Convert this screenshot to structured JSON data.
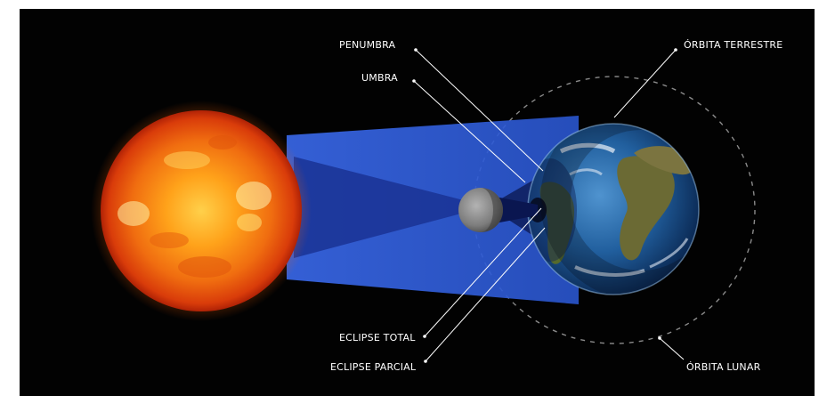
{
  "diagram": {
    "labels": {
      "penumbra": "PENUMBRA",
      "umbra": "UMBRA",
      "orbita_terrestre": "ÓRBITA TERRESTRE",
      "eclipse_total": "ECLIPSE TOTAL",
      "eclipse_parcial": "ECLIPSE PARCIAL",
      "orbita_lunar": "ÓRBITA LUNAR"
    },
    "colors": {
      "background": "#020202",
      "sun_core": "#ffb21e",
      "sun_edge": "#d9360a",
      "penumbra": "#2f5bd8",
      "umbra": "#0a1650",
      "ocean": "#1c5fa8",
      "land": "#5b6a2e",
      "moon": "#8a8a8a"
    }
  }
}
